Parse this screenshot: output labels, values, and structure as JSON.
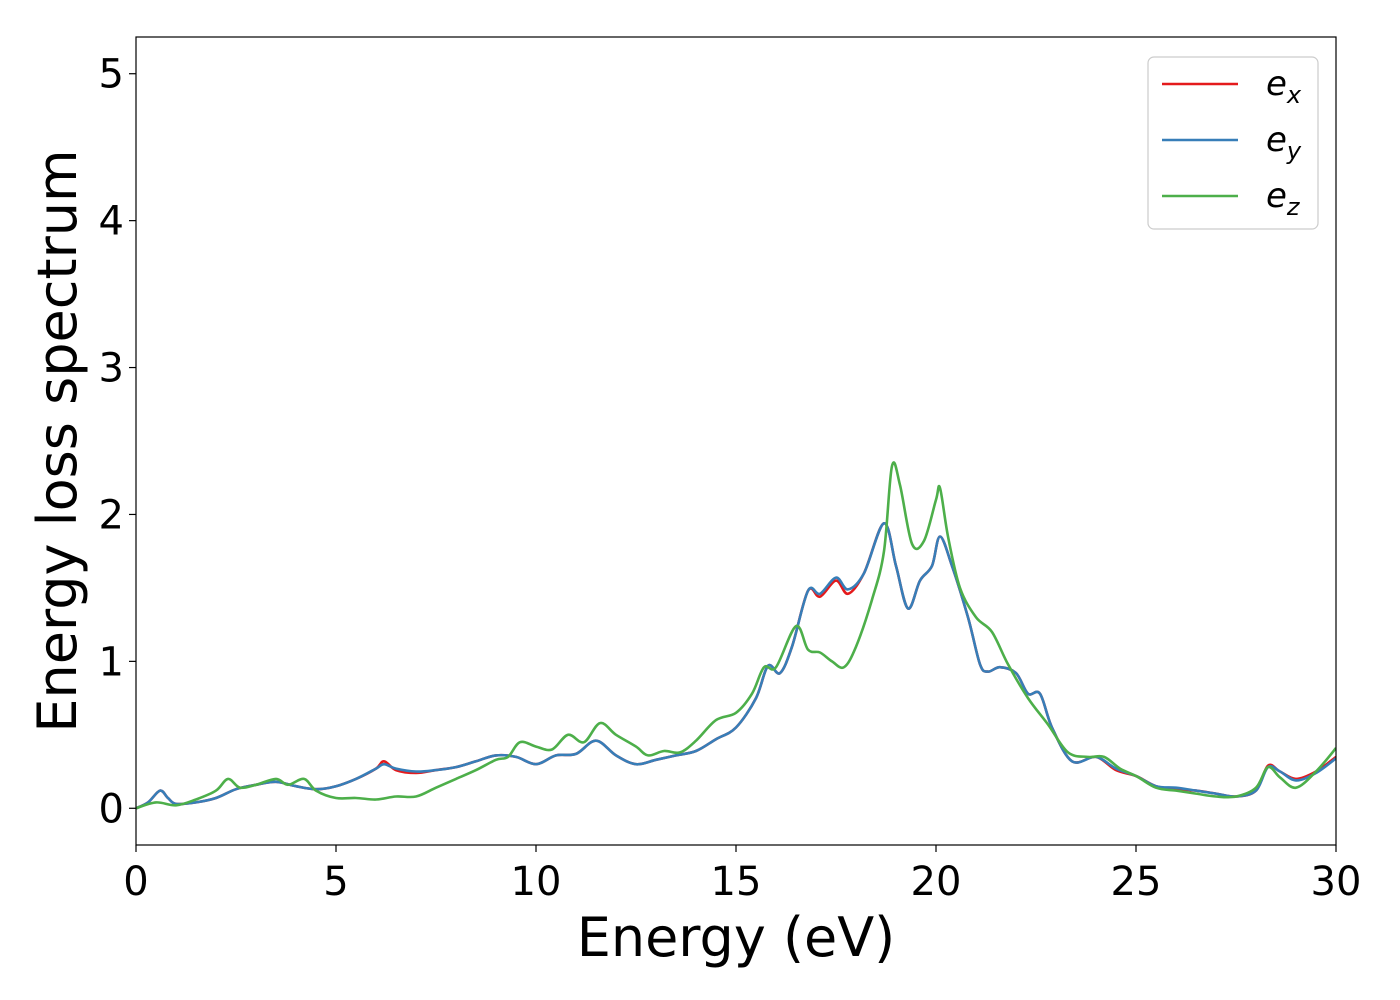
{
  "chart_data": {
    "type": "line",
    "title": "",
    "xlabel": "Energy (eV)",
    "ylabel": "Energy loss spectrum",
    "xlim": [
      0,
      30
    ],
    "ylim": [
      -0.25,
      5.25
    ],
    "xticks": [
      0,
      5,
      10,
      15,
      20,
      25,
      30
    ],
    "yticks": [
      0,
      1,
      2,
      3,
      4,
      5
    ],
    "xtick_labels": [
      "0",
      "5",
      "10",
      "15",
      "20",
      "25",
      "30"
    ],
    "ytick_labels": [
      "0",
      "1",
      "2",
      "3",
      "4",
      "5"
    ],
    "grid": false,
    "legend_position": "top-right",
    "series": [
      {
        "name": "e_x",
        "legend_base": "e",
        "legend_sub": "x",
        "color": "#e41a1c",
        "points": [
          [
            0,
            0
          ],
          [
            0.3,
            0.04
          ],
          [
            0.6,
            0.12
          ],
          [
            0.8,
            0.07
          ],
          [
            1,
            0.03
          ],
          [
            1.5,
            0.04
          ],
          [
            2,
            0.07
          ],
          [
            2.5,
            0.13
          ],
          [
            3,
            0.16
          ],
          [
            3.5,
            0.18
          ],
          [
            4,
            0.15
          ],
          [
            4.5,
            0.13
          ],
          [
            5,
            0.15
          ],
          [
            5.5,
            0.2
          ],
          [
            6,
            0.27
          ],
          [
            6.2,
            0.32
          ],
          [
            6.5,
            0.26
          ],
          [
            7,
            0.24
          ],
          [
            7.5,
            0.26
          ],
          [
            8,
            0.28
          ],
          [
            8.5,
            0.32
          ],
          [
            9,
            0.36
          ],
          [
            9.5,
            0.35
          ],
          [
            10,
            0.3
          ],
          [
            10.5,
            0.36
          ],
          [
            11,
            0.37
          ],
          [
            11.5,
            0.46
          ],
          [
            12,
            0.36
          ],
          [
            12.5,
            0.3
          ],
          [
            13,
            0.33
          ],
          [
            13.5,
            0.36
          ],
          [
            14,
            0.39
          ],
          [
            14.5,
            0.47
          ],
          [
            15,
            0.55
          ],
          [
            15.5,
            0.75
          ],
          [
            15.8,
            0.97
          ],
          [
            16.1,
            0.92
          ],
          [
            16.4,
            1.1
          ],
          [
            16.8,
            1.48
          ],
          [
            17.1,
            1.44
          ],
          [
            17.5,
            1.55
          ],
          [
            17.8,
            1.46
          ],
          [
            18.2,
            1.6
          ],
          [
            18.7,
            1.94
          ],
          [
            19,
            1.65
          ],
          [
            19.3,
            1.36
          ],
          [
            19.6,
            1.55
          ],
          [
            19.9,
            1.65
          ],
          [
            20.1,
            1.85
          ],
          [
            20.4,
            1.65
          ],
          [
            20.8,
            1.3
          ],
          [
            21.1,
            0.98
          ],
          [
            21.3,
            0.93
          ],
          [
            21.6,
            0.96
          ],
          [
            22,
            0.92
          ],
          [
            22.3,
            0.78
          ],
          [
            22.6,
            0.78
          ],
          [
            22.9,
            0.55
          ],
          [
            23.4,
            0.32
          ],
          [
            24,
            0.35
          ],
          [
            24.5,
            0.26
          ],
          [
            25,
            0.22
          ],
          [
            25.5,
            0.15
          ],
          [
            26,
            0.13
          ],
          [
            26.5,
            0.12
          ],
          [
            27,
            0.1
          ],
          [
            27.5,
            0.08
          ],
          [
            28,
            0.12
          ],
          [
            28.3,
            0.29
          ],
          [
            28.6,
            0.25
          ],
          [
            29,
            0.2
          ],
          [
            29.5,
            0.25
          ],
          [
            30,
            0.35
          ]
        ]
      },
      {
        "name": "e_y",
        "legend_base": "e",
        "legend_sub": "y",
        "color": "#377eb8",
        "points": [
          [
            0,
            0
          ],
          [
            0.3,
            0.04
          ],
          [
            0.6,
            0.12
          ],
          [
            0.8,
            0.07
          ],
          [
            1,
            0.03
          ],
          [
            1.5,
            0.04
          ],
          [
            2,
            0.07
          ],
          [
            2.5,
            0.13
          ],
          [
            3,
            0.16
          ],
          [
            3.5,
            0.18
          ],
          [
            4,
            0.15
          ],
          [
            4.5,
            0.13
          ],
          [
            5,
            0.15
          ],
          [
            5.5,
            0.2
          ],
          [
            6,
            0.27
          ],
          [
            6.2,
            0.3
          ],
          [
            6.5,
            0.27
          ],
          [
            7,
            0.25
          ],
          [
            7.5,
            0.26
          ],
          [
            8,
            0.28
          ],
          [
            8.5,
            0.32
          ],
          [
            9,
            0.36
          ],
          [
            9.5,
            0.35
          ],
          [
            10,
            0.3
          ],
          [
            10.5,
            0.36
          ],
          [
            11,
            0.37
          ],
          [
            11.5,
            0.46
          ],
          [
            12,
            0.36
          ],
          [
            12.5,
            0.3
          ],
          [
            13,
            0.33
          ],
          [
            13.5,
            0.36
          ],
          [
            14,
            0.39
          ],
          [
            14.5,
            0.47
          ],
          [
            15,
            0.55
          ],
          [
            15.5,
            0.75
          ],
          [
            15.8,
            0.97
          ],
          [
            16.1,
            0.92
          ],
          [
            16.4,
            1.1
          ],
          [
            16.8,
            1.48
          ],
          [
            17.1,
            1.46
          ],
          [
            17.5,
            1.57
          ],
          [
            17.8,
            1.49
          ],
          [
            18.2,
            1.6
          ],
          [
            18.7,
            1.94
          ],
          [
            19,
            1.65
          ],
          [
            19.3,
            1.36
          ],
          [
            19.6,
            1.55
          ],
          [
            19.9,
            1.65
          ],
          [
            20.1,
            1.85
          ],
          [
            20.4,
            1.65
          ],
          [
            20.8,
            1.3
          ],
          [
            21.1,
            0.98
          ],
          [
            21.3,
            0.93
          ],
          [
            21.6,
            0.96
          ],
          [
            22,
            0.92
          ],
          [
            22.3,
            0.78
          ],
          [
            22.6,
            0.78
          ],
          [
            22.9,
            0.55
          ],
          [
            23.4,
            0.32
          ],
          [
            24,
            0.35
          ],
          [
            24.5,
            0.27
          ],
          [
            25,
            0.22
          ],
          [
            25.5,
            0.15
          ],
          [
            26,
            0.14
          ],
          [
            26.5,
            0.12
          ],
          [
            27,
            0.1
          ],
          [
            27.5,
            0.08
          ],
          [
            28,
            0.12
          ],
          [
            28.3,
            0.28
          ],
          [
            28.6,
            0.25
          ],
          [
            29,
            0.19
          ],
          [
            29.5,
            0.24
          ],
          [
            30,
            0.34
          ]
        ]
      },
      {
        "name": "e_z",
        "legend_base": "e",
        "legend_sub": "z",
        "color": "#4daf4a",
        "points": [
          [
            0,
            0
          ],
          [
            0.5,
            0.04
          ],
          [
            1,
            0.02
          ],
          [
            1.5,
            0.06
          ],
          [
            2,
            0.12
          ],
          [
            2.3,
            0.2
          ],
          [
            2.6,
            0.14
          ],
          [
            3,
            0.16
          ],
          [
            3.5,
            0.2
          ],
          [
            3.8,
            0.16
          ],
          [
            4.2,
            0.2
          ],
          [
            4.5,
            0.12
          ],
          [
            5,
            0.07
          ],
          [
            5.5,
            0.07
          ],
          [
            6,
            0.06
          ],
          [
            6.5,
            0.08
          ],
          [
            7,
            0.08
          ],
          [
            7.5,
            0.14
          ],
          [
            8,
            0.2
          ],
          [
            8.5,
            0.26
          ],
          [
            9,
            0.33
          ],
          [
            9.3,
            0.35
          ],
          [
            9.6,
            0.45
          ],
          [
            10,
            0.42
          ],
          [
            10.4,
            0.4
          ],
          [
            10.8,
            0.5
          ],
          [
            11.2,
            0.45
          ],
          [
            11.6,
            0.58
          ],
          [
            12,
            0.5
          ],
          [
            12.5,
            0.42
          ],
          [
            12.8,
            0.36
          ],
          [
            13.2,
            0.39
          ],
          [
            13.6,
            0.38
          ],
          [
            14,
            0.46
          ],
          [
            14.5,
            0.6
          ],
          [
            15,
            0.65
          ],
          [
            15.4,
            0.78
          ],
          [
            15.7,
            0.96
          ],
          [
            16,
            0.96
          ],
          [
            16.5,
            1.24
          ],
          [
            16.8,
            1.08
          ],
          [
            17.1,
            1.06
          ],
          [
            17.4,
            1.0
          ],
          [
            17.7,
            0.96
          ],
          [
            18,
            1.1
          ],
          [
            18.4,
            1.42
          ],
          [
            18.7,
            1.75
          ],
          [
            18.9,
            2.33
          ],
          [
            19.1,
            2.2
          ],
          [
            19.4,
            1.8
          ],
          [
            19.7,
            1.82
          ],
          [
            20,
            2.1
          ],
          [
            20.1,
            2.18
          ],
          [
            20.3,
            1.85
          ],
          [
            20.6,
            1.5
          ],
          [
            21,
            1.3
          ],
          [
            21.4,
            1.2
          ],
          [
            21.8,
            0.98
          ],
          [
            22.3,
            0.75
          ],
          [
            22.8,
            0.57
          ],
          [
            23.3,
            0.38
          ],
          [
            23.8,
            0.35
          ],
          [
            24.2,
            0.35
          ],
          [
            24.6,
            0.27
          ],
          [
            25,
            0.22
          ],
          [
            25.5,
            0.14
          ],
          [
            26,
            0.12
          ],
          [
            26.5,
            0.1
          ],
          [
            27,
            0.08
          ],
          [
            27.5,
            0.08
          ],
          [
            28,
            0.14
          ],
          [
            28.3,
            0.28
          ],
          [
            28.6,
            0.21
          ],
          [
            29,
            0.14
          ],
          [
            29.5,
            0.25
          ],
          [
            30,
            0.41
          ]
        ]
      }
    ]
  }
}
